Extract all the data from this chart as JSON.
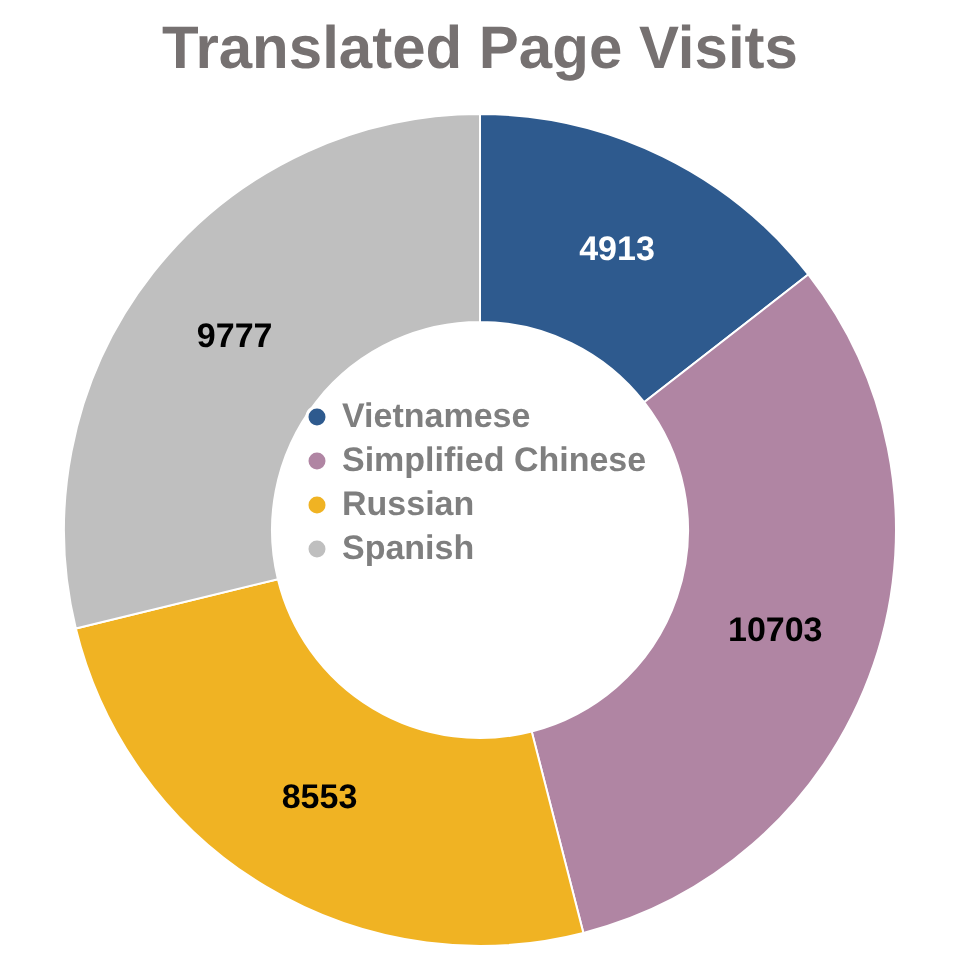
{
  "chart_data": {
    "type": "donut",
    "title": "Translated Page Visits",
    "categories": [
      "Vietnamese",
      "Simplified Chinese",
      "Russian",
      "Spanish"
    ],
    "values": [
      4913,
      10703,
      8553,
      9777
    ],
    "colors": [
      "#2e5a8e",
      "#b085a3",
      "#f0b323",
      "#bfbfbf"
    ],
    "data_labels": true,
    "legend": "center"
  }
}
